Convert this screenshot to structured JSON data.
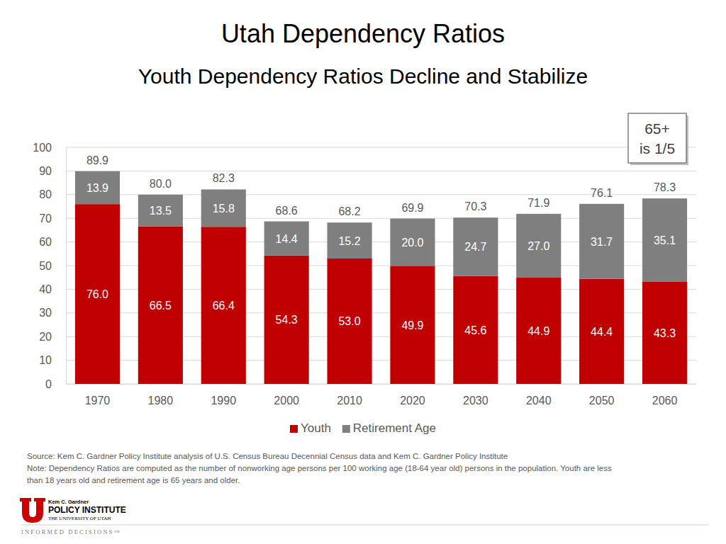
{
  "chart_data": {
    "type": "bar",
    "stacked": true,
    "data_labels": true,
    "grid": true,
    "legend": "bottom",
    "title": "Utah Dependency Ratios",
    "subtitle": "Youth Dependency Ratios Decline and Stabilize",
    "categories": [
      "1970",
      "1980",
      "1990",
      "2000",
      "2010",
      "2020",
      "2030",
      "2040",
      "2050",
      "2060"
    ],
    "series": [
      {
        "name": "Youth",
        "color": "#c00000",
        "values": [
          76.0,
          66.5,
          66.4,
          54.3,
          53.0,
          49.9,
          45.6,
          44.9,
          44.4,
          43.3
        ],
        "value_labels": [
          "76.0",
          "66.5",
          "66.4",
          "54.3",
          "53.0",
          "49.9",
          "45.6",
          "44.9",
          "44.4",
          "43.3"
        ]
      },
      {
        "name": "Retirement Age",
        "color": "#7f7f7f",
        "values": [
          13.9,
          13.5,
          15.8,
          14.4,
          15.2,
          20.0,
          24.7,
          27.0,
          31.7,
          35.1
        ],
        "value_labels": [
          "13.9",
          "13.5",
          "15.8",
          "14.4",
          "15.2",
          "20.0",
          "24.7",
          "27.0",
          "31.7",
          "35.1"
        ]
      }
    ],
    "totals": {
      "values": [
        89.9,
        80.0,
        82.3,
        68.6,
        68.2,
        69.9,
        70.3,
        71.9,
        76.1,
        78.3
      ],
      "value_labels": [
        "89.9",
        "80.0",
        "82.3",
        "68.6",
        "68.2",
        "69.9",
        "70.3",
        "71.9",
        "76.1",
        "78.3"
      ]
    },
    "ylim": [
      0,
      100
    ],
    "yticks": [
      0,
      10,
      20,
      30,
      40,
      50,
      60,
      70,
      80,
      90,
      100
    ],
    "annotation": [
      "65+",
      "is 1/5"
    ],
    "source": "Source: Kem C. Gardner Policy Institute analysis of U.S. Census Bureau Decennial Census data and Kem C. Gardner Policy Institute",
    "note": [
      "Note: Dependency Ratios are computed as the number of nonworking age persons per 100 working age (18-64 year old) persons in the population. Youth are less",
      "than 18 years old and retirement age is 65 years and older."
    ],
    "logo": {
      "line1": "Kem C. Gardner",
      "line2": "POLICY INSTITUTE",
      "line3": "THE UNIVERSITY OF UTAH",
      "tagline": "INFORMED DECISIONS™"
    }
  }
}
